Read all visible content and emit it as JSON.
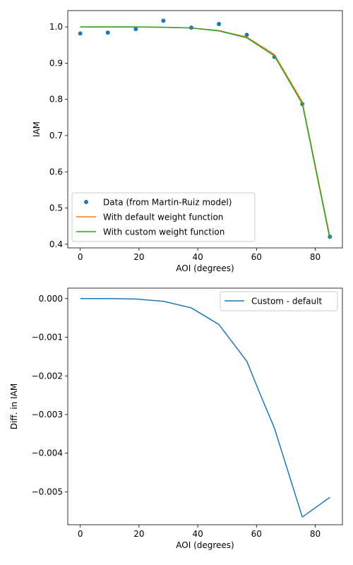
{
  "chart_data": [
    {
      "type": "line",
      "xlabel": "AOI (degrees)",
      "ylabel": "IAM",
      "xlim": [
        -4.25,
        89.25
      ],
      "ylim": [
        0.39,
        1.045
      ],
      "xticks": [
        0,
        20,
        40,
        60,
        80
      ],
      "yticks": [
        0.4,
        0.5,
        0.6,
        0.7,
        0.8,
        0.9,
        1.0
      ],
      "ytick_labels": [
        "0.4",
        "0.5",
        "0.6",
        "0.7",
        "0.8",
        "0.9",
        "1.0"
      ],
      "legend_position": "lower-left",
      "grid": false,
      "series": [
        {
          "name": "Data (from Martin-Ruiz model)",
          "style": "markers",
          "color": "#1f77b4",
          "x": [
            0,
            9.4,
            18.9,
            28.3,
            37.8,
            47.2,
            56.7,
            66.1,
            75.6,
            85
          ],
          "y": [
            0.982,
            0.984,
            0.994,
            1.017,
            0.998,
            1.008,
            0.978,
            0.917,
            0.787,
            0.421
          ]
        },
        {
          "name": "With default weight function",
          "style": "line",
          "color": "#ff7f0e",
          "x": [
            0,
            9.4,
            18.9,
            28.3,
            37.8,
            47.2,
            56.7,
            66.1,
            75.6,
            85
          ],
          "y": [
            1.0,
            1.0,
            1.0,
            0.999,
            0.997,
            0.99,
            0.972,
            0.924,
            0.793,
            0.42
          ]
        },
        {
          "name": "With custom weight function",
          "style": "line",
          "color": "#2ca02c",
          "x": [
            0,
            9.4,
            18.9,
            28.3,
            37.8,
            47.2,
            56.7,
            66.1,
            75.6,
            85
          ],
          "y": [
            1.0,
            1.0,
            1.0,
            0.999,
            0.997,
            0.989,
            0.97,
            0.92,
            0.788,
            0.415
          ]
        }
      ]
    },
    {
      "type": "line",
      "xlabel": "AOI (degrees)",
      "ylabel": "Diff. in IAM",
      "xlim": [
        -4.25,
        89.25
      ],
      "ylim": [
        -0.00585,
        0.00027
      ],
      "xticks": [
        0,
        20,
        40,
        60,
        80
      ],
      "yticks": [
        0.0,
        -0.001,
        -0.002,
        -0.003,
        -0.004,
        -0.005
      ],
      "ytick_labels": [
        "0.000",
        "−0.001",
        "−0.002",
        "−0.003",
        "−0.004",
        "−0.005"
      ],
      "legend_position": "top-right",
      "grid": false,
      "series": [
        {
          "name": "Custom - default",
          "style": "line",
          "color": "#1f77b4",
          "x": [
            0,
            9.4,
            18.9,
            28.3,
            37.8,
            47.2,
            56.7,
            61.4,
            66.1,
            75.6,
            85
          ],
          "y": [
            0.0,
            0.0,
            -1e-05,
            -7e-05,
            -0.00024,
            -0.00067,
            -0.00162,
            -0.0025,
            -0.00335,
            -0.00565,
            -0.00514
          ]
        }
      ]
    }
  ]
}
